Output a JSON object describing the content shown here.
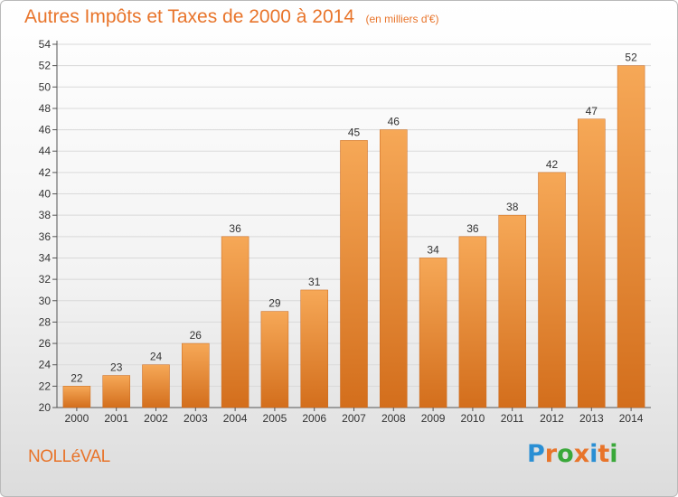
{
  "header": {
    "title": "Autres Impôts et Taxes de 2000 à 2014",
    "subtitle": "(en milliers d'€)"
  },
  "footer": {
    "commune": "NOLLéVAL",
    "logo_text": "Proxiti",
    "logo_colors": [
      "#2a8fd4",
      "#e8742a",
      "#3aa83a",
      "#e8742a",
      "#2a8fd4",
      "#e8742a",
      "#3aa83a"
    ]
  },
  "colors": {
    "accent": "#e8742a",
    "bar_light": "#f6a857",
    "bar_dark": "#d36e1c",
    "grid": "#d9d9d9"
  },
  "chart_data": {
    "type": "bar",
    "title": "Autres Impôts et Taxes de 2000 à 2014",
    "subtitle": "(en milliers d'€)",
    "categories": [
      "2000",
      "2001",
      "2002",
      "2003",
      "2004",
      "2005",
      "2006",
      "2007",
      "2008",
      "2009",
      "2010",
      "2011",
      "2012",
      "2013",
      "2014"
    ],
    "values": [
      22,
      23,
      24,
      26,
      36,
      29,
      31,
      45,
      46,
      34,
      36,
      38,
      42,
      47,
      52
    ],
    "ylim": [
      20,
      54
    ],
    "ytick_step": 2,
    "grid": true,
    "data_labels": true
  }
}
